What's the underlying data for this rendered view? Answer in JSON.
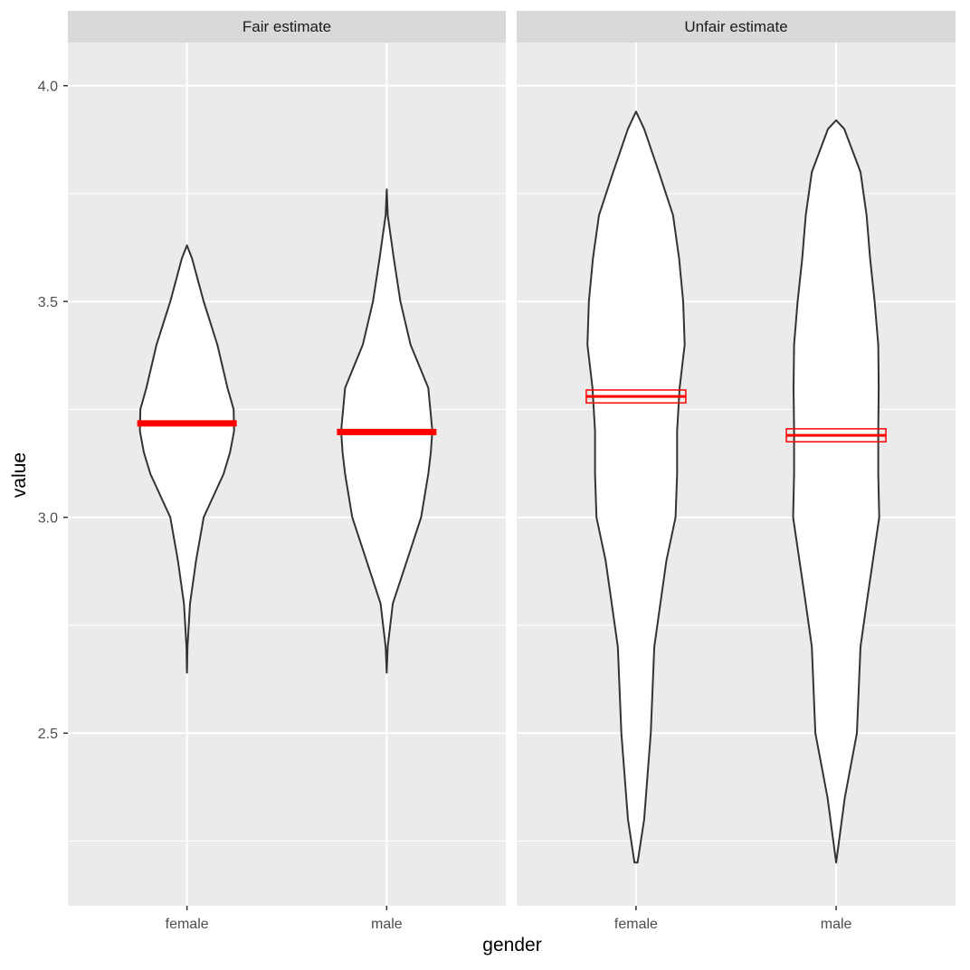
{
  "chart_data": {
    "type": "violin",
    "xlabel": "gender",
    "ylabel": "value",
    "ylim": [
      2.1,
      4.1
    ],
    "y_ticks": [
      2.5,
      3.0,
      3.5,
      4.0
    ],
    "y_tick_labels": [
      "2.5",
      "3.0",
      "3.5",
      "4.0"
    ],
    "categories": [
      "female",
      "male"
    ],
    "grid": true,
    "colors": {
      "panel_bg": "#ebebeb",
      "strip_bg": "#d9d9d9",
      "grid": "#ffffff",
      "violin_fill": "#ffffff",
      "violin_outline": "#333333",
      "estimate": "#ff0000"
    },
    "facets": [
      {
        "label": "Fair estimate",
        "groups": [
          {
            "category": "female",
            "estimate": 3.22,
            "interval": [
              3.215,
              3.225
            ],
            "min": 2.64,
            "max": 3.63,
            "profile": [
              [
                2.64,
                0.0
              ],
              [
                2.7,
                0.01
              ],
              [
                2.8,
                0.06
              ],
              [
                2.9,
                0.18
              ],
              [
                3.0,
                0.33
              ],
              [
                3.1,
                0.72
              ],
              [
                3.15,
                0.85
              ],
              [
                3.2,
                0.93
              ],
              [
                3.25,
                0.92
              ],
              [
                3.3,
                0.8
              ],
              [
                3.4,
                0.6
              ],
              [
                3.5,
                0.33
              ],
              [
                3.6,
                0.1
              ],
              [
                3.63,
                0.0
              ]
            ]
          },
          {
            "category": "male",
            "estimate": 3.2,
            "interval": [
              3.195,
              3.205
            ],
            "min": 2.64,
            "max": 3.76,
            "profile": [
              [
                2.64,
                0.0
              ],
              [
                2.7,
                0.02
              ],
              [
                2.8,
                0.12
              ],
              [
                2.9,
                0.4
              ],
              [
                3.0,
                0.68
              ],
              [
                3.1,
                0.82
              ],
              [
                3.15,
                0.87
              ],
              [
                3.2,
                0.9
              ],
              [
                3.3,
                0.82
              ],
              [
                3.4,
                0.47
              ],
              [
                3.5,
                0.27
              ],
              [
                3.6,
                0.14
              ],
              [
                3.7,
                0.02
              ],
              [
                3.76,
                0.0
              ]
            ]
          }
        ]
      },
      {
        "label": "Unfair estimate",
        "groups": [
          {
            "category": "female",
            "estimate": 3.28,
            "interval": [
              3.265,
              3.295
            ],
            "min": 2.2,
            "max": 3.94,
            "profile": [
              [
                2.2,
                0.03
              ],
              [
                2.3,
                0.16
              ],
              [
                2.5,
                0.29
              ],
              [
                2.7,
                0.36
              ],
              [
                2.9,
                0.6
              ],
              [
                3.0,
                0.78
              ],
              [
                3.1,
                0.81
              ],
              [
                3.2,
                0.81
              ],
              [
                3.3,
                0.86
              ],
              [
                3.4,
                0.96
              ],
              [
                3.5,
                0.93
              ],
              [
                3.6,
                0.85
              ],
              [
                3.7,
                0.73
              ],
              [
                3.8,
                0.45
              ],
              [
                3.9,
                0.16
              ],
              [
                3.94,
                0.0
              ]
            ]
          },
          {
            "category": "male",
            "estimate": 3.19,
            "interval": [
              3.175,
              3.205
            ],
            "min": 2.2,
            "max": 3.92,
            "profile": [
              [
                2.2,
                0.0
              ],
              [
                2.35,
                0.17
              ],
              [
                2.5,
                0.41
              ],
              [
                2.7,
                0.48
              ],
              [
                2.8,
                0.6
              ],
              [
                3.0,
                0.85
              ],
              [
                3.1,
                0.83
              ],
              [
                3.2,
                0.83
              ],
              [
                3.3,
                0.84
              ],
              [
                3.4,
                0.83
              ],
              [
                3.5,
                0.76
              ],
              [
                3.6,
                0.67
              ],
              [
                3.7,
                0.6
              ],
              [
                3.8,
                0.48
              ],
              [
                3.9,
                0.16
              ],
              [
                3.92,
                0.0
              ]
            ]
          }
        ]
      }
    ]
  }
}
